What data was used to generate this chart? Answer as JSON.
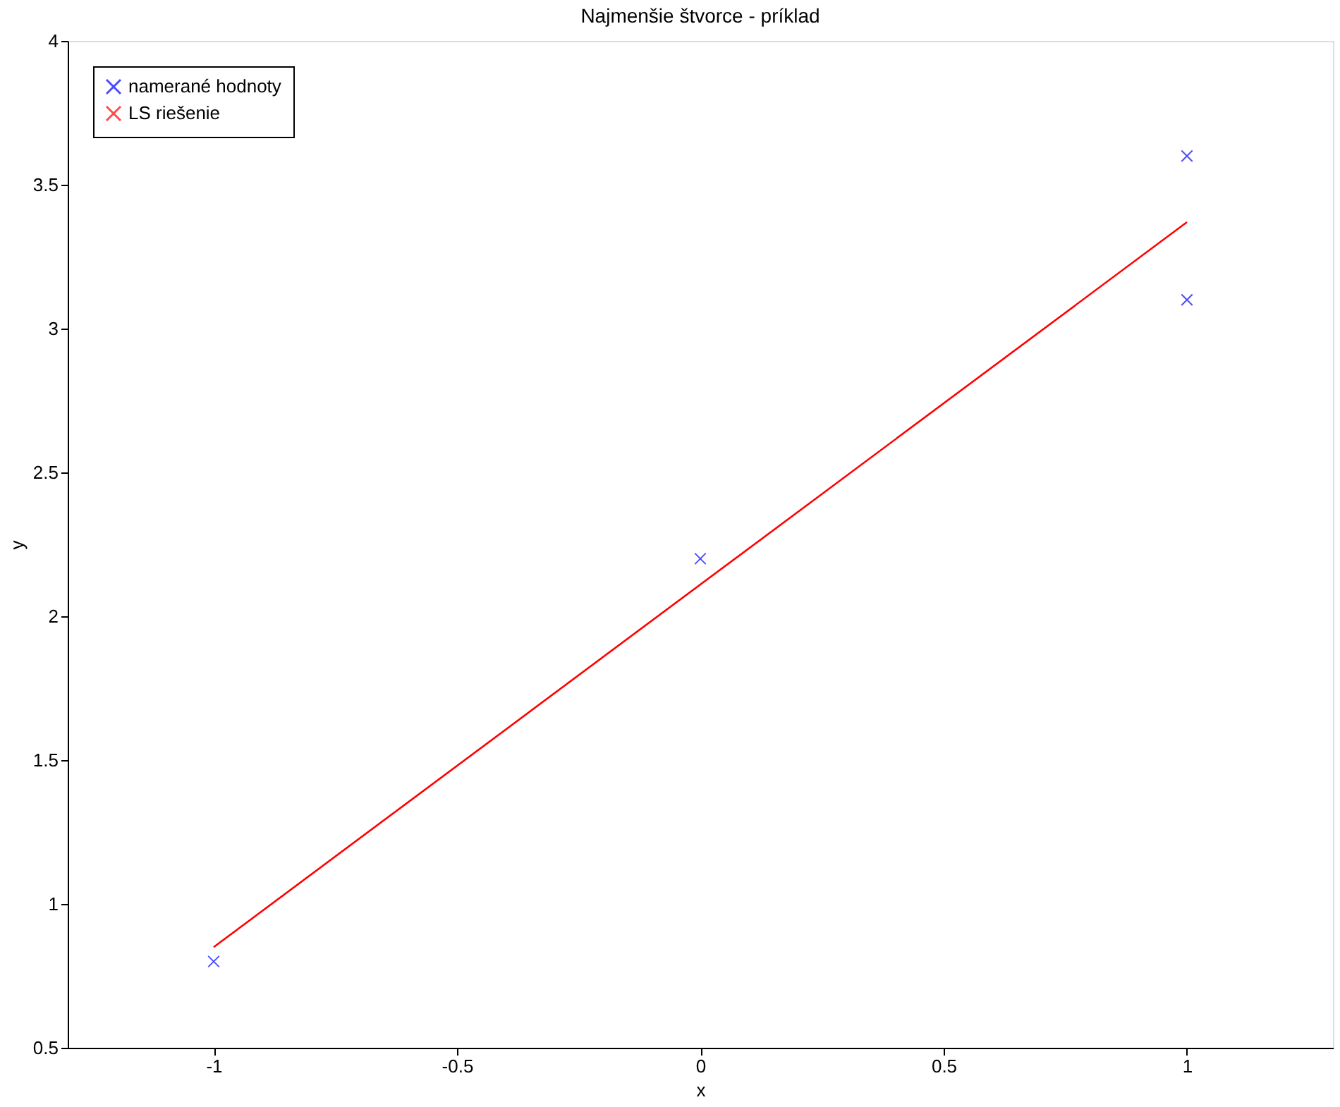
{
  "chart_data": {
    "type": "scatter",
    "title": "Najmenšie štvorce - príklad",
    "xlabel": "x",
    "ylabel": "y",
    "series": [
      {
        "name": "namerané hodnoty",
        "color": "#0000ff",
        "marker": "cross",
        "x": [
          -1,
          0,
          1,
          1
        ],
        "values": [
          0.8,
          2.2,
          3.1,
          3.6
        ]
      },
      {
        "name": "LS riešenie",
        "color": "#ff0000",
        "type": "line",
        "marker": "none",
        "line_style": "solid",
        "x": [
          -1,
          1
        ],
        "values": [
          0.85,
          3.37
        ]
      }
    ],
    "xlim": [
      -1.3,
      1.3
    ],
    "xticks": [
      -1,
      -0.5,
      0,
      0.5,
      1
    ],
    "ylim": [
      0.5,
      4
    ],
    "yticks": [
      0.5,
      1,
      1.5,
      2,
      2.5,
      3,
      3.5,
      4
    ],
    "grid": false,
    "legend": "top left"
  }
}
